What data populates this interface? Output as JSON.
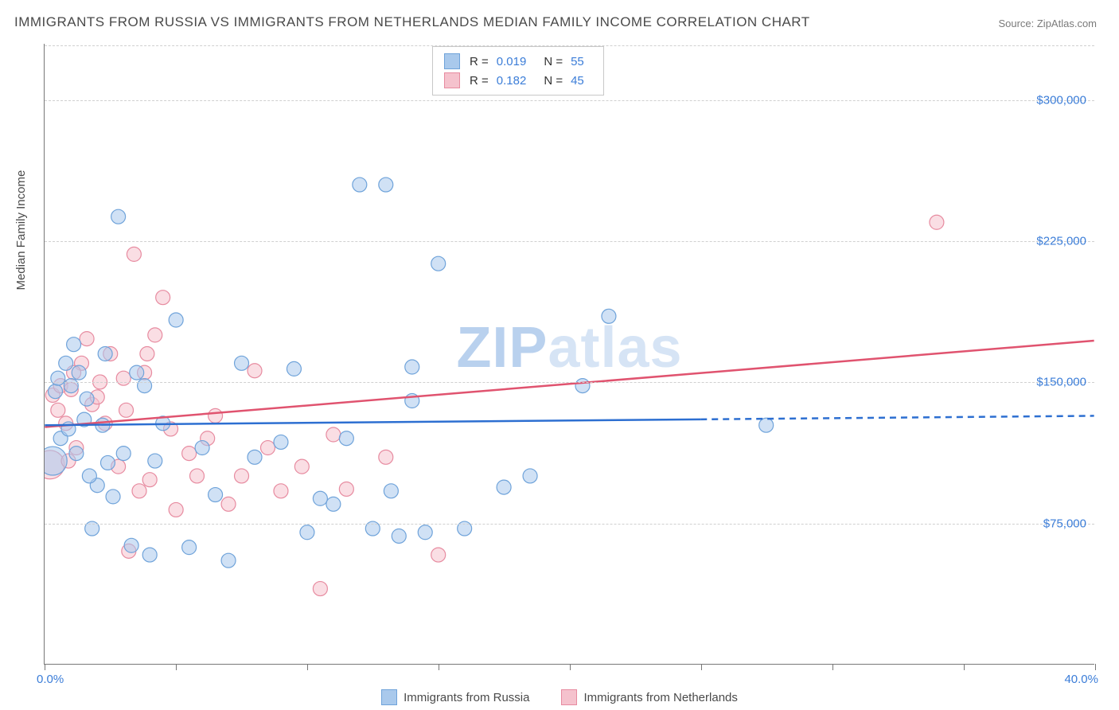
{
  "title": "IMMIGRANTS FROM RUSSIA VS IMMIGRANTS FROM NETHERLANDS MEDIAN FAMILY INCOME CORRELATION CHART",
  "source_label": "Source: ZipAtlas.com",
  "watermark": {
    "part1": "ZIP",
    "part2": "atlas"
  },
  "y_axis": {
    "title": "Median Family Income",
    "min": 0,
    "max": 330000,
    "ticks": [
      75000,
      150000,
      225000,
      300000
    ],
    "tick_labels": [
      "$75,000",
      "$150,000",
      "$225,000",
      "$300,000"
    ],
    "gridline_color": "#d0d0d0"
  },
  "x_axis": {
    "min": 0,
    "max": 40,
    "start_label": "0.0%",
    "end_label": "40.0%",
    "tick_positions": [
      0,
      5,
      10,
      15,
      20,
      25,
      30,
      35,
      40
    ]
  },
  "colors": {
    "russia_fill": "#a9c9ec",
    "russia_stroke": "#6fa3da",
    "russia_line": "#2d6fd1",
    "netherlands_fill": "#f5c2cd",
    "netherlands_stroke": "#e78ba0",
    "netherlands_line": "#e0536f",
    "axis_label": "#3b7dd8",
    "text": "#4a4a4a"
  },
  "legend_top": {
    "rows": [
      {
        "swatch": "russia",
        "r_label": "R =",
        "r_value": "0.019",
        "n_label": "N =",
        "n_value": "55"
      },
      {
        "swatch": "netherlands",
        "r_label": "R =",
        "r_value": "0.182",
        "n_label": "N =",
        "n_value": "45"
      }
    ]
  },
  "legend_bottom": {
    "items": [
      {
        "swatch": "russia",
        "text": "Immigrants from Russia"
      },
      {
        "swatch": "netherlands",
        "text": "Immigrants from Netherlands"
      }
    ]
  },
  "trend_lines": {
    "russia": {
      "y_start": 127000,
      "y_end": 132000,
      "dash_from_x": 25
    },
    "netherlands": {
      "y_start": 126000,
      "y_end": 172000
    }
  },
  "marker_radius": 9,
  "marker_opacity": 0.55,
  "series": {
    "russia": [
      {
        "x": 0.3,
        "y": 108000,
        "r": 18
      },
      {
        "x": 0.4,
        "y": 145000
      },
      {
        "x": 0.5,
        "y": 152000
      },
      {
        "x": 0.6,
        "y": 120000
      },
      {
        "x": 0.8,
        "y": 160000
      },
      {
        "x": 0.9,
        "y": 125000
      },
      {
        "x": 1.0,
        "y": 148000
      },
      {
        "x": 1.1,
        "y": 170000
      },
      {
        "x": 1.2,
        "y": 112000
      },
      {
        "x": 1.3,
        "y": 155000
      },
      {
        "x": 1.5,
        "y": 130000
      },
      {
        "x": 1.6,
        "y": 141000
      },
      {
        "x": 1.8,
        "y": 72000
      },
      {
        "x": 2.0,
        "y": 95000
      },
      {
        "x": 2.2,
        "y": 127000
      },
      {
        "x": 2.4,
        "y": 107000
      },
      {
        "x": 2.6,
        "y": 89000
      },
      {
        "x": 2.8,
        "y": 238000
      },
      {
        "x": 3.0,
        "y": 112000
      },
      {
        "x": 3.3,
        "y": 63000
      },
      {
        "x": 3.5,
        "y": 155000
      },
      {
        "x": 3.8,
        "y": 148000
      },
      {
        "x": 4.0,
        "y": 58000
      },
      {
        "x": 4.2,
        "y": 108000
      },
      {
        "x": 4.5,
        "y": 128000
      },
      {
        "x": 5.0,
        "y": 183000
      },
      {
        "x": 5.5,
        "y": 62000
      },
      {
        "x": 6.0,
        "y": 115000
      },
      {
        "x": 6.5,
        "y": 90000
      },
      {
        "x": 7.0,
        "y": 55000
      },
      {
        "x": 7.5,
        "y": 160000
      },
      {
        "x": 8.0,
        "y": 110000
      },
      {
        "x": 9.0,
        "y": 118000
      },
      {
        "x": 9.5,
        "y": 157000
      },
      {
        "x": 10.0,
        "y": 70000
      },
      {
        "x": 10.5,
        "y": 88000
      },
      {
        "x": 11.0,
        "y": 85000
      },
      {
        "x": 11.5,
        "y": 120000
      },
      {
        "x": 12.0,
        "y": 255000
      },
      {
        "x": 12.5,
        "y": 72000
      },
      {
        "x": 13.0,
        "y": 255000
      },
      {
        "x": 13.2,
        "y": 92000
      },
      {
        "x": 13.5,
        "y": 68000
      },
      {
        "x": 14.0,
        "y": 158000
      },
      {
        "x": 14.0,
        "y": 140000
      },
      {
        "x": 14.5,
        "y": 70000
      },
      {
        "x": 15.0,
        "y": 213000
      },
      {
        "x": 16.0,
        "y": 72000
      },
      {
        "x": 17.5,
        "y": 94000
      },
      {
        "x": 18.5,
        "y": 100000
      },
      {
        "x": 20.5,
        "y": 148000
      },
      {
        "x": 21.5,
        "y": 185000
      },
      {
        "x": 27.5,
        "y": 127000
      },
      {
        "x": 1.7,
        "y": 100000
      },
      {
        "x": 2.3,
        "y": 165000
      }
    ],
    "netherlands": [
      {
        "x": 0.2,
        "y": 106000,
        "r": 18
      },
      {
        "x": 0.3,
        "y": 143000
      },
      {
        "x": 0.5,
        "y": 135000
      },
      {
        "x": 0.6,
        "y": 148000
      },
      {
        "x": 0.8,
        "y": 128000
      },
      {
        "x": 1.0,
        "y": 146000
      },
      {
        "x": 1.2,
        "y": 115000
      },
      {
        "x": 1.4,
        "y": 160000
      },
      {
        "x": 1.6,
        "y": 173000
      },
      {
        "x": 1.8,
        "y": 138000
      },
      {
        "x": 2.0,
        "y": 142000
      },
      {
        "x": 2.3,
        "y": 128000
      },
      {
        "x": 2.5,
        "y": 165000
      },
      {
        "x": 2.8,
        "y": 105000
      },
      {
        "x": 3.0,
        "y": 152000
      },
      {
        "x": 3.2,
        "y": 60000
      },
      {
        "x": 3.4,
        "y": 218000
      },
      {
        "x": 3.6,
        "y": 92000
      },
      {
        "x": 3.8,
        "y": 155000
      },
      {
        "x": 4.0,
        "y": 98000
      },
      {
        "x": 4.2,
        "y": 175000
      },
      {
        "x": 4.5,
        "y": 195000
      },
      {
        "x": 4.8,
        "y": 125000
      },
      {
        "x": 5.0,
        "y": 82000
      },
      {
        "x": 5.5,
        "y": 112000
      },
      {
        "x": 5.8,
        "y": 100000
      },
      {
        "x": 6.5,
        "y": 132000
      },
      {
        "x": 7.0,
        "y": 85000
      },
      {
        "x": 8.0,
        "y": 156000
      },
      {
        "x": 8.5,
        "y": 115000
      },
      {
        "x": 9.0,
        "y": 92000
      },
      {
        "x": 10.5,
        "y": 40000
      },
      {
        "x": 11.0,
        "y": 122000
      },
      {
        "x": 11.5,
        "y": 93000
      },
      {
        "x": 15.0,
        "y": 58000
      },
      {
        "x": 34.0,
        "y": 235000
      },
      {
        "x": 1.1,
        "y": 155000
      },
      {
        "x": 0.9,
        "y": 108000
      },
      {
        "x": 2.1,
        "y": 150000
      },
      {
        "x": 3.1,
        "y": 135000
      },
      {
        "x": 3.9,
        "y": 165000
      },
      {
        "x": 6.2,
        "y": 120000
      },
      {
        "x": 7.5,
        "y": 100000
      },
      {
        "x": 9.8,
        "y": 105000
      },
      {
        "x": 13.0,
        "y": 110000
      }
    ]
  }
}
